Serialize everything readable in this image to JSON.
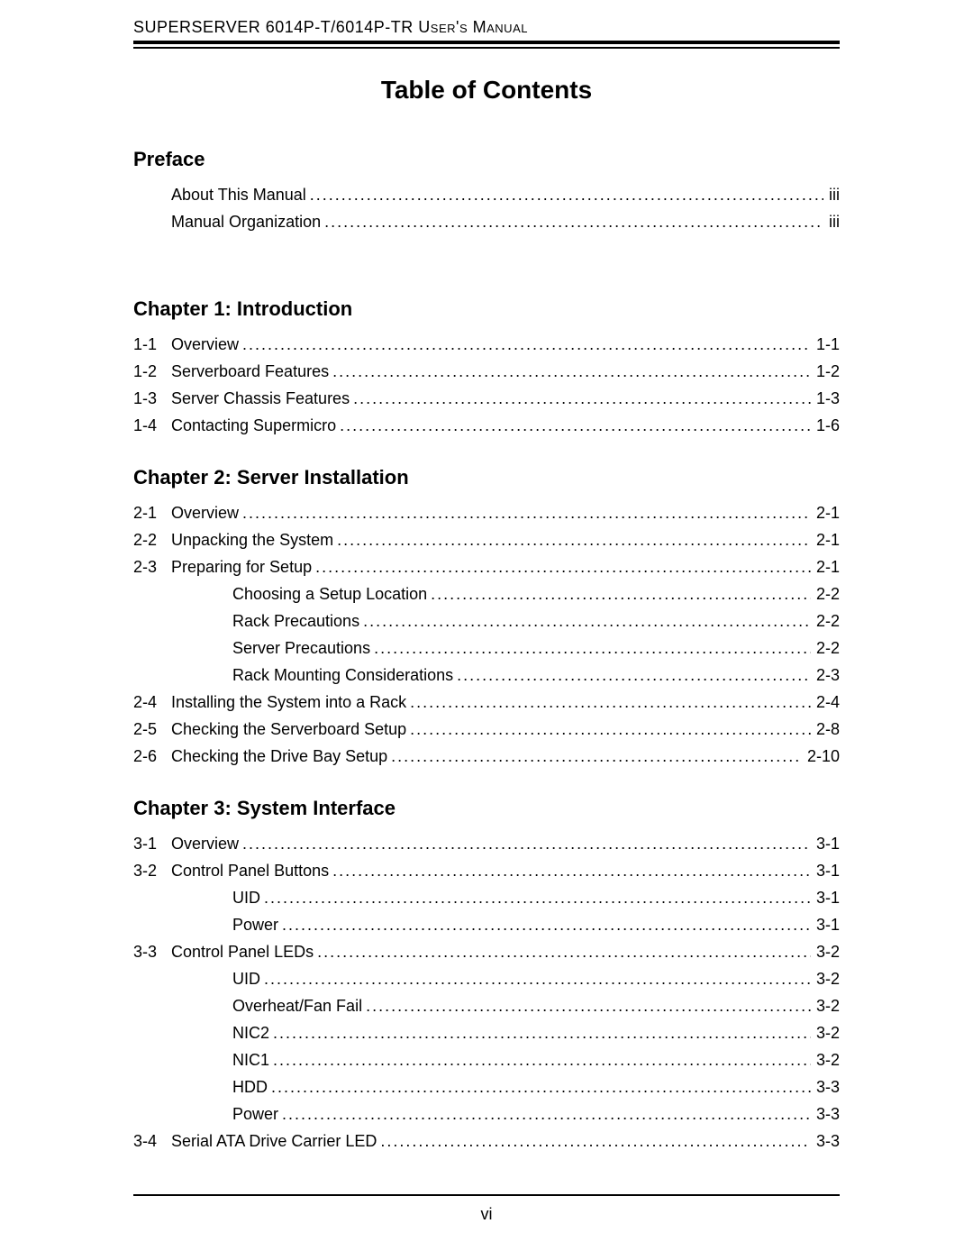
{
  "header": "SUPERSERVER 6014P-T/6014P-TR User's Manual",
  "title": "Table of Contents",
  "pageNumber": "vi",
  "sections": [
    {
      "heading": "Preface",
      "entries": [
        {
          "num": "",
          "label": "About This Manual",
          "page": "iii",
          "indent": false
        },
        {
          "num": "",
          "label": "Manual Organization",
          "page": "iii",
          "indent": false
        }
      ]
    },
    {
      "heading": "Chapter 1: Introduction",
      "entries": [
        {
          "num": "1-1",
          "label": "Overview",
          "page": "1-1",
          "indent": false
        },
        {
          "num": "1-2",
          "label": "Serverboard Features",
          "page": "1-2",
          "indent": false
        },
        {
          "num": "1-3",
          "label": "Server Chassis Features",
          "page": "1-3",
          "indent": false
        },
        {
          "num": "1-4",
          "label": "Contacting Supermicro",
          "page": "1-6",
          "indent": false
        }
      ]
    },
    {
      "heading": "Chapter 2: Server Installation",
      "entries": [
        {
          "num": "2-1",
          "label": "Overview",
          "page": "2-1",
          "indent": false
        },
        {
          "num": "2-2",
          "label": "Unpacking the System",
          "page": "2-1",
          "indent": false
        },
        {
          "num": "2-3",
          "label": "Preparing for Setup",
          "page": "2-1",
          "indent": false
        },
        {
          "num": "",
          "label": "Choosing a Setup Location",
          "page": "2-2",
          "indent": true
        },
        {
          "num": "",
          "label": "Rack Precautions",
          "page": "2-2",
          "indent": true
        },
        {
          "num": "",
          "label": "Server Precautions",
          "page": "2-2",
          "indent": true
        },
        {
          "num": "",
          "label": "Rack Mounting Considerations",
          "page": "2-3",
          "indent": true
        },
        {
          "num": "2-4",
          "label": "Installing the System into a Rack",
          "page": "2-4",
          "indent": false
        },
        {
          "num": "2-5",
          "label": "Checking the Serverboard Setup",
          "page": "2-8",
          "indent": false
        },
        {
          "num": "2-6",
          "label": "Checking the Drive Bay Setup",
          "page": "2-10",
          "indent": false
        }
      ]
    },
    {
      "heading": "Chapter 3: System Interface",
      "entries": [
        {
          "num": "3-1",
          "label": "Overview",
          "page": "3-1",
          "indent": false
        },
        {
          "num": "3-2",
          "label": "Control Panel Buttons",
          "page": "3-1",
          "indent": false
        },
        {
          "num": "",
          "label": "UID",
          "page": "3-1",
          "indent": true
        },
        {
          "num": "",
          "label": "Power",
          "page": "3-1",
          "indent": true
        },
        {
          "num": "3-3",
          "label": "Control Panel LEDs",
          "page": "3-2",
          "indent": false
        },
        {
          "num": "",
          "label": "UID",
          "page": "3-2",
          "indent": true
        },
        {
          "num": "",
          "label": "Overheat/Fan Fail",
          "page": "3-2",
          "indent": true
        },
        {
          "num": "",
          "label": "NIC2",
          "page": "3-2",
          "indent": true
        },
        {
          "num": "",
          "label": "NIC1",
          "page": "3-2",
          "indent": true
        },
        {
          "num": "",
          "label": "HDD",
          "page": "3-3",
          "indent": true
        },
        {
          "num": "",
          "label": "Power",
          "page": "3-3",
          "indent": true
        },
        {
          "num": "3-4",
          "label": "Serial ATA Drive Carrier LED",
          "page": "3-3",
          "indent": false
        }
      ]
    }
  ]
}
